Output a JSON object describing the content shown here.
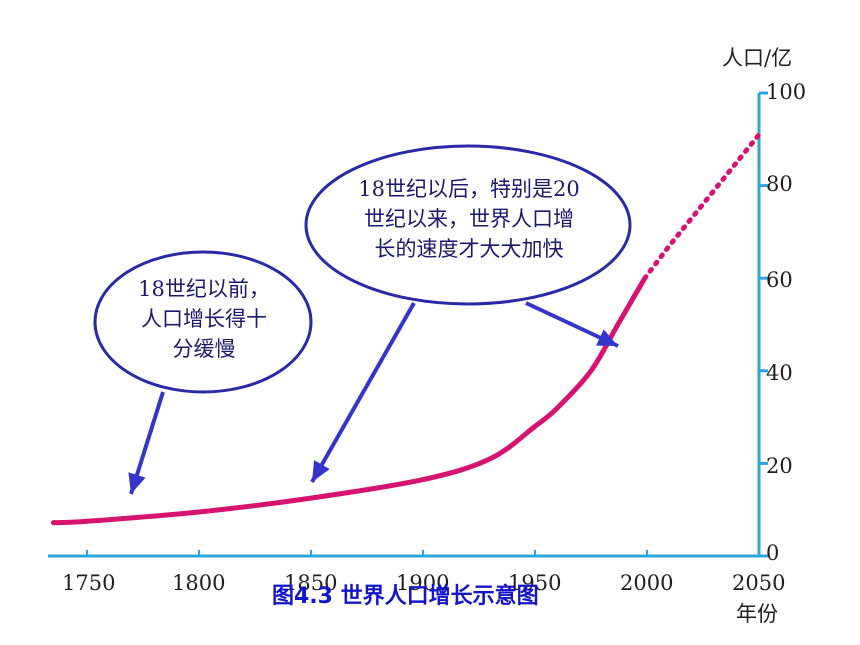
{
  "chart_data": {
    "type": "line",
    "title": "图4.3 世界人口增长示意图",
    "xlabel": "年份",
    "ylabel": "人口/亿",
    "xlim": [
      1735,
      2050
    ],
    "ylim": [
      0,
      100
    ],
    "x_ticks": [
      "1750",
      "1800",
      "1850",
      "1900",
      "1950",
      "2000",
      "2050"
    ],
    "y_ticks": [
      "0",
      "20",
      "40",
      "60",
      "80",
      "100"
    ],
    "grid": false,
    "series": [
      {
        "color": "#d6136f",
        "x": [
          1735,
          1750,
          1800,
          1850,
          1900,
          1930,
          1950,
          1960,
          1975,
          1987,
          1999
        ],
        "y": [
          7.2,
          7.5,
          9.5,
          12.5,
          16.5,
          21,
          28,
          32,
          40,
          50,
          60
        ],
        "style": "solid"
      },
      {
        "color": "#d6136f",
        "x": [
          1999,
          2010,
          2020,
          2030,
          2040,
          2050
        ],
        "y": [
          60,
          67,
          73,
          79,
          85,
          91
        ],
        "style": "dotted"
      }
    ],
    "annotations": [
      {
        "lines": [
          "18世纪以前，",
          "人口增长得十",
          "分缓慢"
        ]
      },
      {
        "lines": [
          "18世纪以后，特别是20",
          "世纪以来，世界人口增",
          "长的速度才大大加快"
        ]
      }
    ]
  },
  "colors": {
    "axis": "#2aa6e0",
    "curve": "#d6136f",
    "bubble_border": "#2a2aa8",
    "arrow": "#3535cc",
    "caption": "#1414cc"
  }
}
